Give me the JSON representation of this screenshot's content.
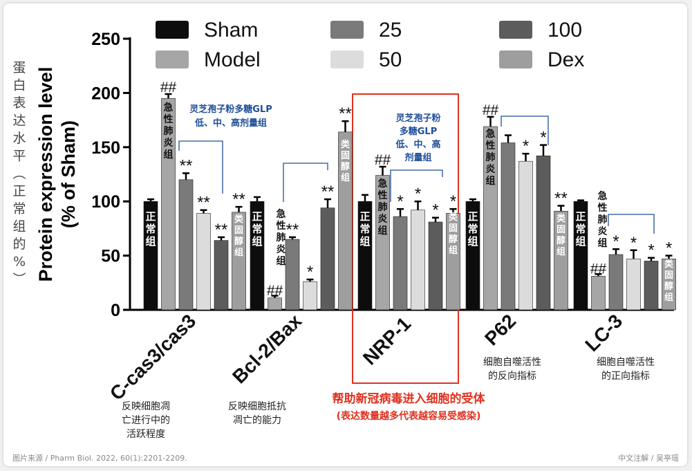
{
  "chart_data": {
    "type": "bar",
    "y_axis": {
      "label_line1": "Protein expression level",
      "label_line2": "(% of Sham)",
      "ylim": [
        0,
        250
      ],
      "ticks": [
        "0",
        "50",
        "100",
        "150",
        "200",
        "250"
      ]
    },
    "y_note_cn": [
      "蛋",
      "白",
      "表",
      "达",
      "水",
      "平",
      "︵",
      "正",
      "常",
      "组",
      "的",
      "%",
      "︶"
    ],
    "legend": [
      {
        "name": "Sham",
        "color": "#0d0d0d"
      },
      {
        "name": "Model",
        "color": "#a6a6a6"
      },
      {
        "name": "25",
        "color": "#7a7a7a"
      },
      {
        "name": "50",
        "color": "#dcdcdc"
      },
      {
        "name": "100",
        "color": "#5c5c5c"
      },
      {
        "name": "Dex",
        "color": "#9e9e9e"
      }
    ],
    "groups": [
      {
        "label": "C-cas3/cas3",
        "note": [
          "反映细胞凋",
          "亡进行中的",
          "活跃程度"
        ],
        "values": [
          100,
          195,
          120,
          89,
          64,
          90
        ],
        "errors": [
          2,
          4,
          6,
          3,
          3,
          5
        ],
        "marks": [
          "",
          "##",
          "**",
          "**",
          "**",
          "**"
        ]
      },
      {
        "label": "Bcl-2/Bax",
        "note": [
          "反映细胞抵抗",
          "凋亡的能力"
        ],
        "values": [
          100,
          11,
          65,
          26,
          94,
          164
        ],
        "errors": [
          4,
          2,
          2,
          2,
          8,
          10
        ],
        "marks": [
          "",
          "##",
          "**",
          "*",
          "**",
          "**"
        ]
      },
      {
        "label": "NRP-1",
        "note": [],
        "values": [
          100,
          124,
          86,
          92,
          81,
          89
        ],
        "errors": [
          6,
          8,
          7,
          8,
          4,
          4
        ],
        "marks": [
          "",
          "##",
          "*",
          "*",
          "*",
          "*"
        ]
      },
      {
        "label": "P62",
        "note": [
          "细胞自噬活性",
          "的反向指标"
        ],
        "values": [
          100,
          169,
          154,
          137,
          142,
          91
        ],
        "errors": [
          2,
          9,
          7,
          7,
          10,
          5
        ],
        "marks": [
          "",
          "##",
          "",
          "*",
          "*",
          "**"
        ]
      },
      {
        "label": "LC-3",
        "note": [
          "细胞自噬活性",
          "的正向指标"
        ],
        "values": [
          100,
          31,
          51,
          47,
          45,
          47
        ],
        "errors": [
          1,
          2,
          5,
          8,
          3,
          3
        ],
        "marks": [
          "",
          "##",
          "*",
          "*",
          "*",
          "*"
        ]
      }
    ],
    "bar_labels": {
      "sham": "正常组",
      "model": "急性肺炎组",
      "dex": "类固醇组"
    },
    "treatment_bracket_note": [
      "灵芝孢子粉多糖GLP",
      "低、中、高剂量组"
    ],
    "nrp_bracket_note": [
      "灵芝孢子粉",
      "多糖GLP",
      "低、中、高",
      "剂量组"
    ],
    "highlight": {
      "title": "帮助新冠病毒进入细胞的受体",
      "subtitle": "(表达数量越多代表越容易受感染)",
      "color": "#e0301e"
    },
    "annotation_color": "#1f4e99"
  },
  "footer": {
    "source": "图片来源 / Pharm Biol. 2022, 60(1):2201-2209.",
    "credit": "中文注解 / 吴亭瑶"
  }
}
